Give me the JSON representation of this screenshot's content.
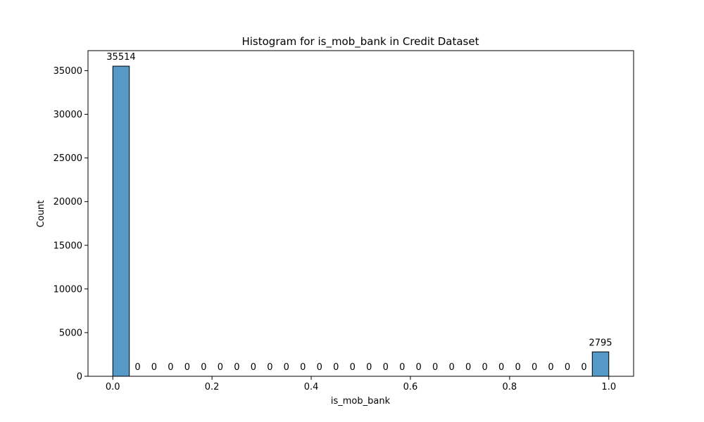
{
  "chart_data": {
    "type": "bar",
    "title": "Histogram for is_mob_bank in Credit Dataset",
    "xlabel": "is_mob_bank",
    "ylabel": "Count",
    "xlim": [
      -0.05,
      1.05
    ],
    "ylim": [
      0,
      37290
    ],
    "x_ticks": [
      0.0,
      0.2,
      0.4,
      0.6,
      0.8,
      1.0
    ],
    "x_tick_labels": [
      "0.0",
      "0.2",
      "0.4",
      "0.6",
      "0.8",
      "1.0"
    ],
    "y_ticks": [
      0,
      5000,
      10000,
      15000,
      20000,
      25000,
      30000,
      35000
    ],
    "y_tick_labels": [
      "0",
      "5000",
      "10000",
      "15000",
      "20000",
      "25000",
      "30000",
      "35000"
    ],
    "bin_start": 0.0,
    "bin_width": 0.03333333,
    "values": [
      35514,
      0,
      0,
      0,
      0,
      0,
      0,
      0,
      0,
      0,
      0,
      0,
      0,
      0,
      0,
      0,
      0,
      0,
      0,
      0,
      0,
      0,
      0,
      0,
      0,
      0,
      0,
      0,
      0,
      2795
    ],
    "bar_color": "#5499c7",
    "edge_color": "#000000",
    "grid": false
  }
}
